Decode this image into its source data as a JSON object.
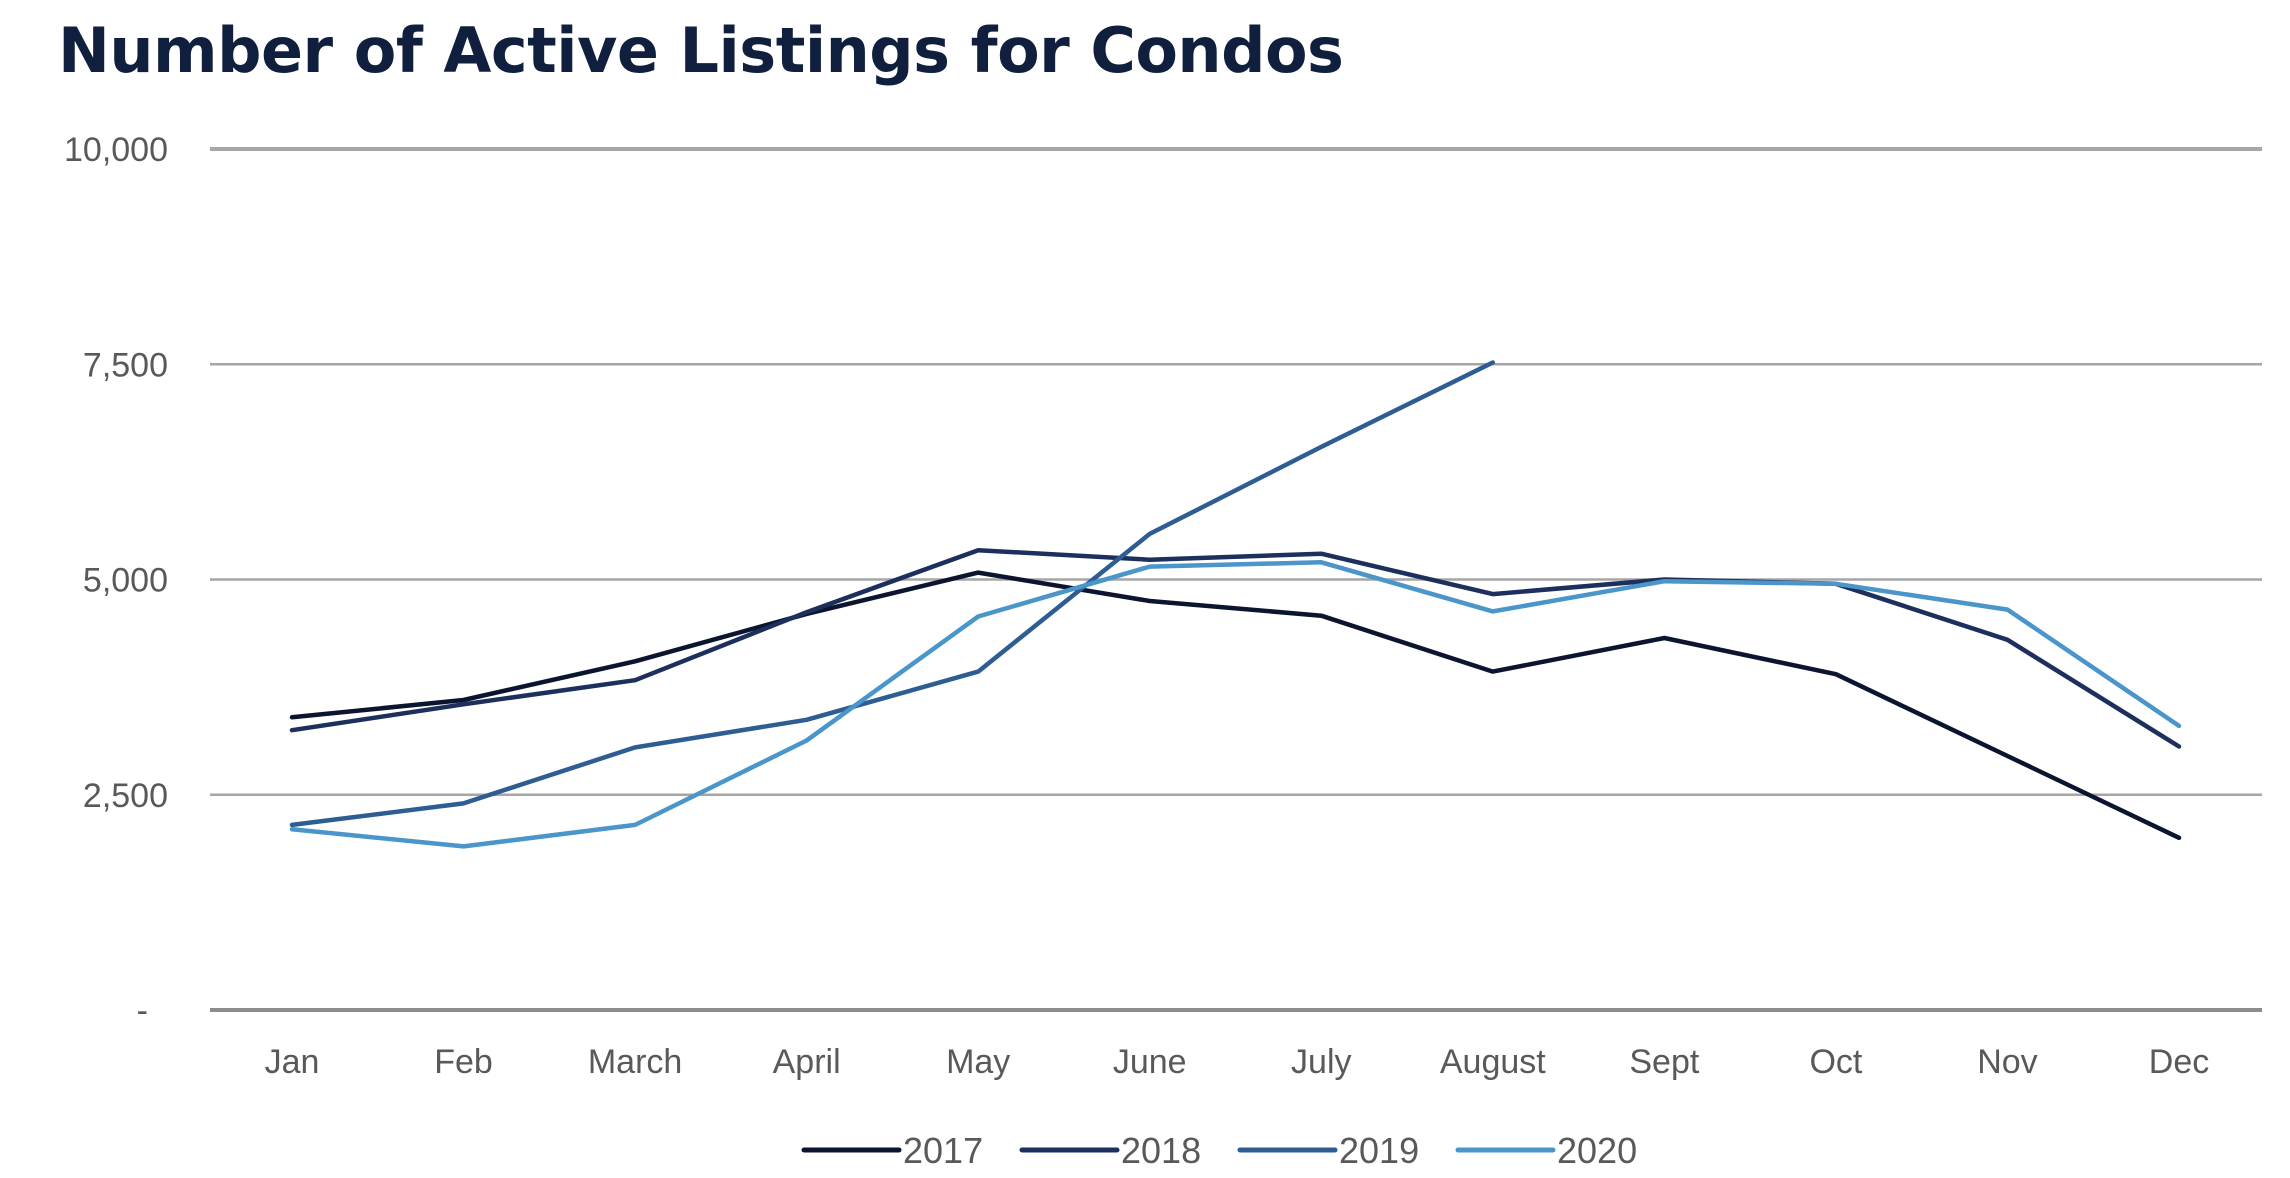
{
  "chart_data": {
    "type": "line",
    "title": "Number of Active Listings for Condos",
    "xlabel": "",
    "ylabel": "",
    "categories": [
      "Jan",
      "Feb",
      "March",
      "April",
      "May",
      "June",
      "July",
      "August",
      "Sept",
      "Oct",
      "Nov",
      "Dec"
    ],
    "ylim": [
      0,
      10000
    ],
    "yticks": [
      {
        "value": 0,
        "label": "-"
      },
      {
        "value": 2500,
        "label": "2,500"
      },
      {
        "value": 5000,
        "label": "5,000"
      },
      {
        "value": 7500,
        "label": "7,500"
      },
      {
        "value": 10000,
        "label": "10,000"
      }
    ],
    "grid": true,
    "legend_position": "bottom",
    "series": [
      {
        "name": "2017",
        "color": "#0b1530",
        "values": [
          3400,
          3600,
          4050,
          4600,
          5080,
          4750,
          4580,
          3930,
          4320,
          3900,
          2950,
          2000
        ]
      },
      {
        "name": "2018",
        "color": "#1d2f5c",
        "values": [
          3250,
          3550,
          3830,
          4620,
          5340,
          5230,
          5300,
          4830,
          5000,
          4950,
          4300,
          3060
        ]
      },
      {
        "name": "2019",
        "color": "#2d5d92",
        "values": [
          2150,
          2400,
          3050,
          3370,
          3930,
          5530,
          6540,
          7520,
          null,
          null,
          null,
          null
        ]
      },
      {
        "name": "2020",
        "color": "#4a95c9",
        "values": [
          2100,
          1900,
          2150,
          3130,
          4570,
          5150,
          5200,
          4630,
          4980,
          4950,
          4650,
          3300
        ]
      }
    ]
  }
}
